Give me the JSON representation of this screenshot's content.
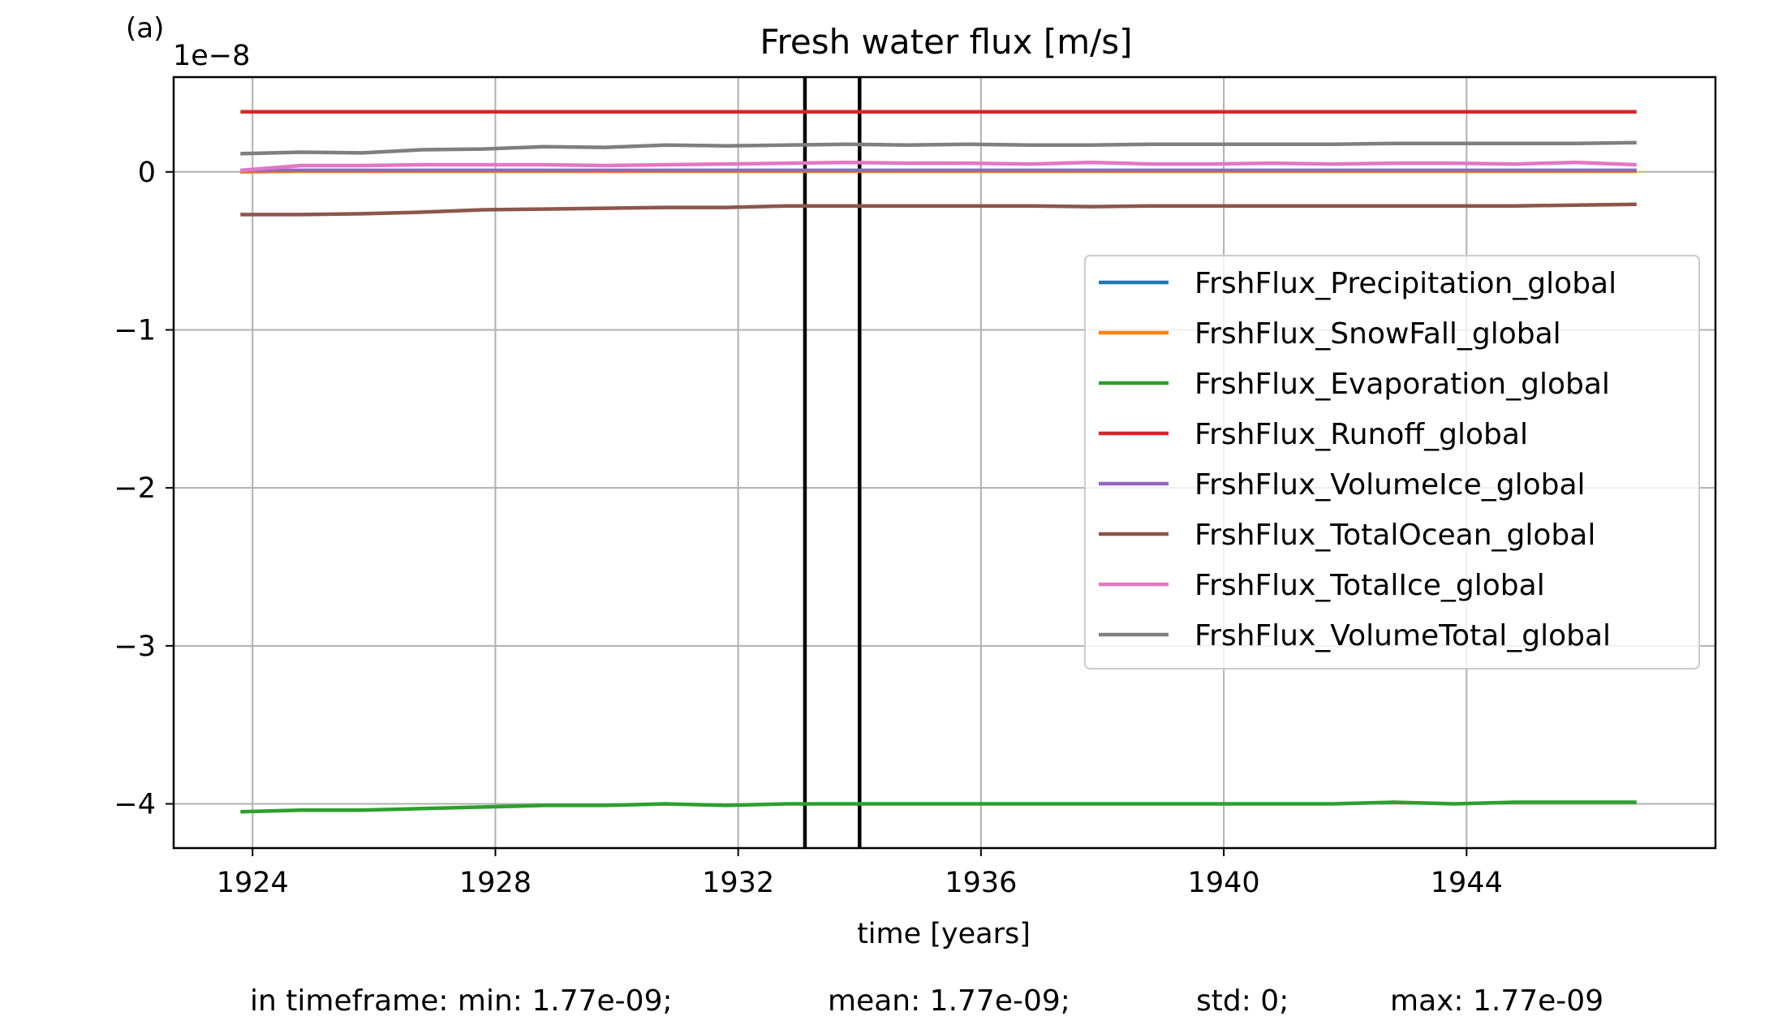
{
  "chart_data": {
    "type": "line",
    "panel_label": "(a)",
    "title": "Fresh water flux [m/s]",
    "xlabel": "time [years]",
    "ylabel": "",
    "offset_text": "1e−8",
    "xlim": [
      1922.7,
      1948.1
    ],
    "ylim": [
      -4.28,
      0.6
    ],
    "grid": true,
    "xticks": [
      1924,
      1928,
      1932,
      1936,
      1940,
      1944
    ],
    "xtick_labels": [
      "1924",
      "1928",
      "1932",
      "1936",
      "1940",
      "1944"
    ],
    "yticks": [
      0,
      -1,
      -2,
      -3,
      -4
    ],
    "ytick_labels": [
      "0",
      "−1",
      "−2",
      "−3",
      "−4"
    ],
    "vlines": [
      1933.1,
      1934.0
    ],
    "legend_position": "center-right",
    "x": [
      1923.8,
      1924.8,
      1925.8,
      1926.8,
      1927.8,
      1928.8,
      1929.8,
      1930.8,
      1931.8,
      1932.8,
      1933.8,
      1934.8,
      1935.8,
      1936.8,
      1937.8,
      1938.8,
      1939.8,
      1940.8,
      1941.8,
      1942.8,
      1943.8,
      1944.8,
      1945.8,
      1946.8
    ],
    "series": [
      {
        "name": "FrshFlux_Precipitation_global",
        "color": "#1f77b4",
        "values": [
          0.0,
          0.005,
          0.005,
          0.005,
          0.005,
          0.005,
          0.005,
          0.005,
          0.005,
          0.005,
          0.005,
          0.005,
          0.005,
          0.005,
          0.005,
          0.005,
          0.005,
          0.005,
          0.005,
          0.005,
          0.005,
          0.005,
          0.005,
          0.005
        ]
      },
      {
        "name": "FrshFlux_SnowFall_global",
        "color": "#ff7f0e",
        "values": [
          0.0,
          0.004,
          0.004,
          0.004,
          0.004,
          0.004,
          0.004,
          0.004,
          0.004,
          0.004,
          0.004,
          0.004,
          0.004,
          0.004,
          0.004,
          0.004,
          0.004,
          0.004,
          0.004,
          0.004,
          0.004,
          0.004,
          0.004,
          0.004
        ]
      },
      {
        "name": "FrshFlux_Evaporation_global",
        "color": "#2ca02c",
        "values": [
          -4.05,
          -4.04,
          -4.04,
          -4.03,
          -4.02,
          -4.01,
          -4.01,
          -4.0,
          -4.01,
          -4.0,
          -4.0,
          -4.0,
          -4.0,
          -4.0,
          -4.0,
          -4.0,
          -4.0,
          -4.0,
          -4.0,
          -3.99,
          -4.0,
          -3.99,
          -3.99,
          -3.99
        ]
      },
      {
        "name": "FrshFlux_Runoff_global",
        "color": "#d62728",
        "values": [
          0.38,
          0.38,
          0.38,
          0.38,
          0.38,
          0.38,
          0.38,
          0.38,
          0.38,
          0.38,
          0.38,
          0.38,
          0.38,
          0.38,
          0.38,
          0.38,
          0.38,
          0.38,
          0.38,
          0.38,
          0.38,
          0.38,
          0.38,
          0.38
        ]
      },
      {
        "name": "FrshFlux_VolumeIce_global",
        "color": "#9467bd",
        "values": [
          0.01,
          0.01,
          0.01,
          0.01,
          0.01,
          0.01,
          0.01,
          0.01,
          0.01,
          0.01,
          0.01,
          0.01,
          0.01,
          0.01,
          0.01,
          0.01,
          0.01,
          0.01,
          0.01,
          0.01,
          0.01,
          0.01,
          0.01,
          0.01
        ]
      },
      {
        "name": "FrshFlux_TotalOcean_global",
        "color": "#8c564b",
        "values": [
          -0.27,
          -0.27,
          -0.265,
          -0.255,
          -0.24,
          -0.235,
          -0.23,
          -0.225,
          -0.225,
          -0.215,
          -0.215,
          -0.215,
          -0.215,
          -0.215,
          -0.22,
          -0.215,
          -0.215,
          -0.215,
          -0.215,
          -0.215,
          -0.215,
          -0.215,
          -0.21,
          -0.205
        ]
      },
      {
        "name": "FrshFlux_TotalIce_global",
        "color": "#e377c2",
        "values": [
          0.01,
          0.04,
          0.04,
          0.045,
          0.045,
          0.045,
          0.04,
          0.045,
          0.05,
          0.055,
          0.06,
          0.055,
          0.055,
          0.05,
          0.06,
          0.05,
          0.05,
          0.055,
          0.05,
          0.055,
          0.055,
          0.05,
          0.06,
          0.045
        ]
      },
      {
        "name": "FrshFlux_VolumeTotal_global",
        "color": "#7f7f7f",
        "values": [
          0.115,
          0.125,
          0.12,
          0.14,
          0.145,
          0.16,
          0.155,
          0.17,
          0.165,
          0.17,
          0.175,
          0.17,
          0.175,
          0.17,
          0.17,
          0.175,
          0.175,
          0.175,
          0.175,
          0.18,
          0.18,
          0.18,
          0.18,
          0.185
        ]
      }
    ]
  },
  "stats": {
    "min": "in timeframe: min: 1.77e-09;",
    "mean": "mean: 1.77e-09;",
    "std": "std: 0;",
    "max": "max: 1.77e-09"
  }
}
